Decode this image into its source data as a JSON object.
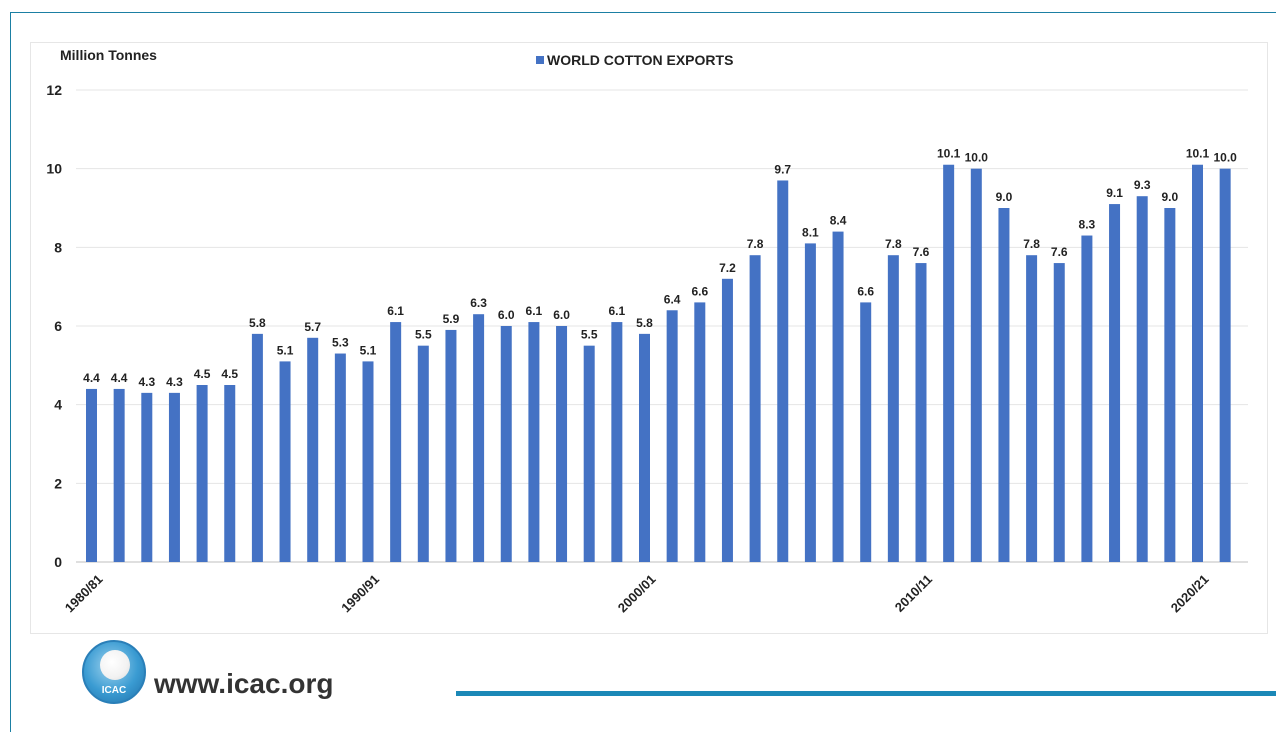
{
  "chart_data": {
    "type": "bar",
    "title": "",
    "ylabel": "Million Tonnes",
    "xlabel": "",
    "series": [
      {
        "name": "WORLD COTTON EXPORTS",
        "color": "#4472c4",
        "values": [
          4.4,
          4.4,
          4.3,
          4.3,
          4.5,
          4.5,
          5.8,
          5.1,
          5.7,
          5.3,
          5.1,
          6.1,
          5.5,
          5.9,
          6.3,
          6.0,
          6.1,
          6.0,
          5.5,
          6.1,
          5.8,
          6.4,
          6.6,
          7.2,
          7.8,
          9.7,
          8.1,
          8.4,
          6.6,
          7.8,
          7.6,
          10.1,
          10.0,
          9.0,
          7.8,
          7.6,
          8.3,
          9.1,
          9.3,
          9.0,
          10.1,
          10.0
        ],
        "labels": [
          "4.4",
          "4.4",
          "4.3",
          "4.3",
          "4.5",
          "4.5",
          "5.8",
          "5.1",
          "5.7",
          "5.3",
          "5.1",
          "6.1",
          "5.5",
          "5.9",
          "6.3",
          "6.0",
          "6.1",
          "6.0",
          "5.5",
          "6.1",
          "5.8",
          "6.4",
          "6.6",
          "7.2",
          "7.8",
          "9.7",
          "8.1",
          "8.4",
          "6.6",
          "7.8",
          "7.6",
          "10.1",
          "10.0",
          "9.0",
          "7.8",
          "7.6",
          "8.3",
          "9.1",
          "9.3",
          "9.0",
          "10.1",
          "10.0"
        ]
      }
    ],
    "x_ticks": [
      {
        "index": 0,
        "label": "1980/81"
      },
      {
        "index": 10,
        "label": "1990/91"
      },
      {
        "index": 20,
        "label": "2000/01"
      },
      {
        "index": 30,
        "label": "2010/11"
      },
      {
        "index": 40,
        "label": "2020/21"
      }
    ],
    "y_ticks": [
      "0",
      "2",
      "4",
      "6",
      "8",
      "10",
      "12"
    ],
    "ylim": [
      0,
      12
    ],
    "grid": true,
    "legend": "top-center"
  },
  "footer": {
    "logo_text": "ICAC",
    "url": "www.icac.org"
  }
}
